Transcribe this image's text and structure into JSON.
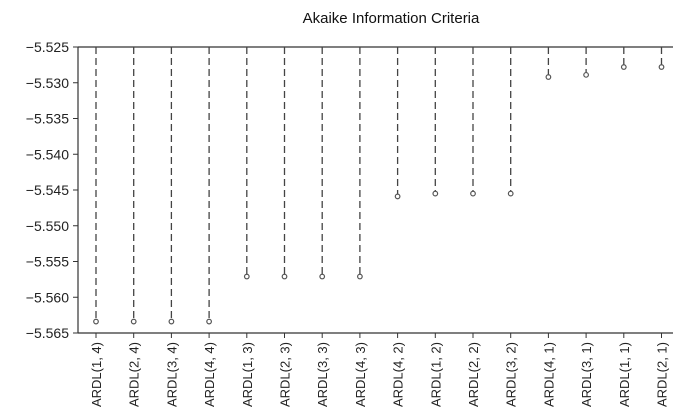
{
  "chart_data": {
    "type": "lollipop",
    "title": "Akaike Information Criteria",
    "xlabel": "",
    "ylabel": "",
    "ylim": [
      -5.565,
      -5.525
    ],
    "yticks": [
      -5.525,
      -5.53,
      -5.535,
      -5.54,
      -5.545,
      -5.55,
      -5.555,
      -5.56,
      -5.565
    ],
    "ytick_labels": [
      "−5.525",
      "−5.530",
      "−5.535",
      "−5.540",
      "−5.545",
      "−5.550",
      "−5.555",
      "−5.560",
      "−5.565"
    ],
    "categories": [
      "ARDL(1, 4)",
      "ARDL(2, 4)",
      "ARDL(3, 4)",
      "ARDL(4, 4)",
      "ARDL(1, 3)",
      "ARDL(2, 3)",
      "ARDL(3, 3)",
      "ARDL(4, 3)",
      "ARDL(4, 2)",
      "ARDL(1, 2)",
      "ARDL(2, 2)",
      "ARDL(3, 2)",
      "ARDL(4, 1)",
      "ARDL(3, 1)",
      "ARDL(1, 1)",
      "ARDL(2, 1)"
    ],
    "values": [
      -5.5634,
      -5.5634,
      -5.5634,
      -5.5634,
      -5.5571,
      -5.5571,
      -5.5571,
      -5.5571,
      -5.5459,
      -5.5455,
      -5.5455,
      -5.5455,
      -5.5292,
      -5.5289,
      -5.5278,
      -5.5278
    ],
    "grid": false,
    "legend": "none"
  }
}
